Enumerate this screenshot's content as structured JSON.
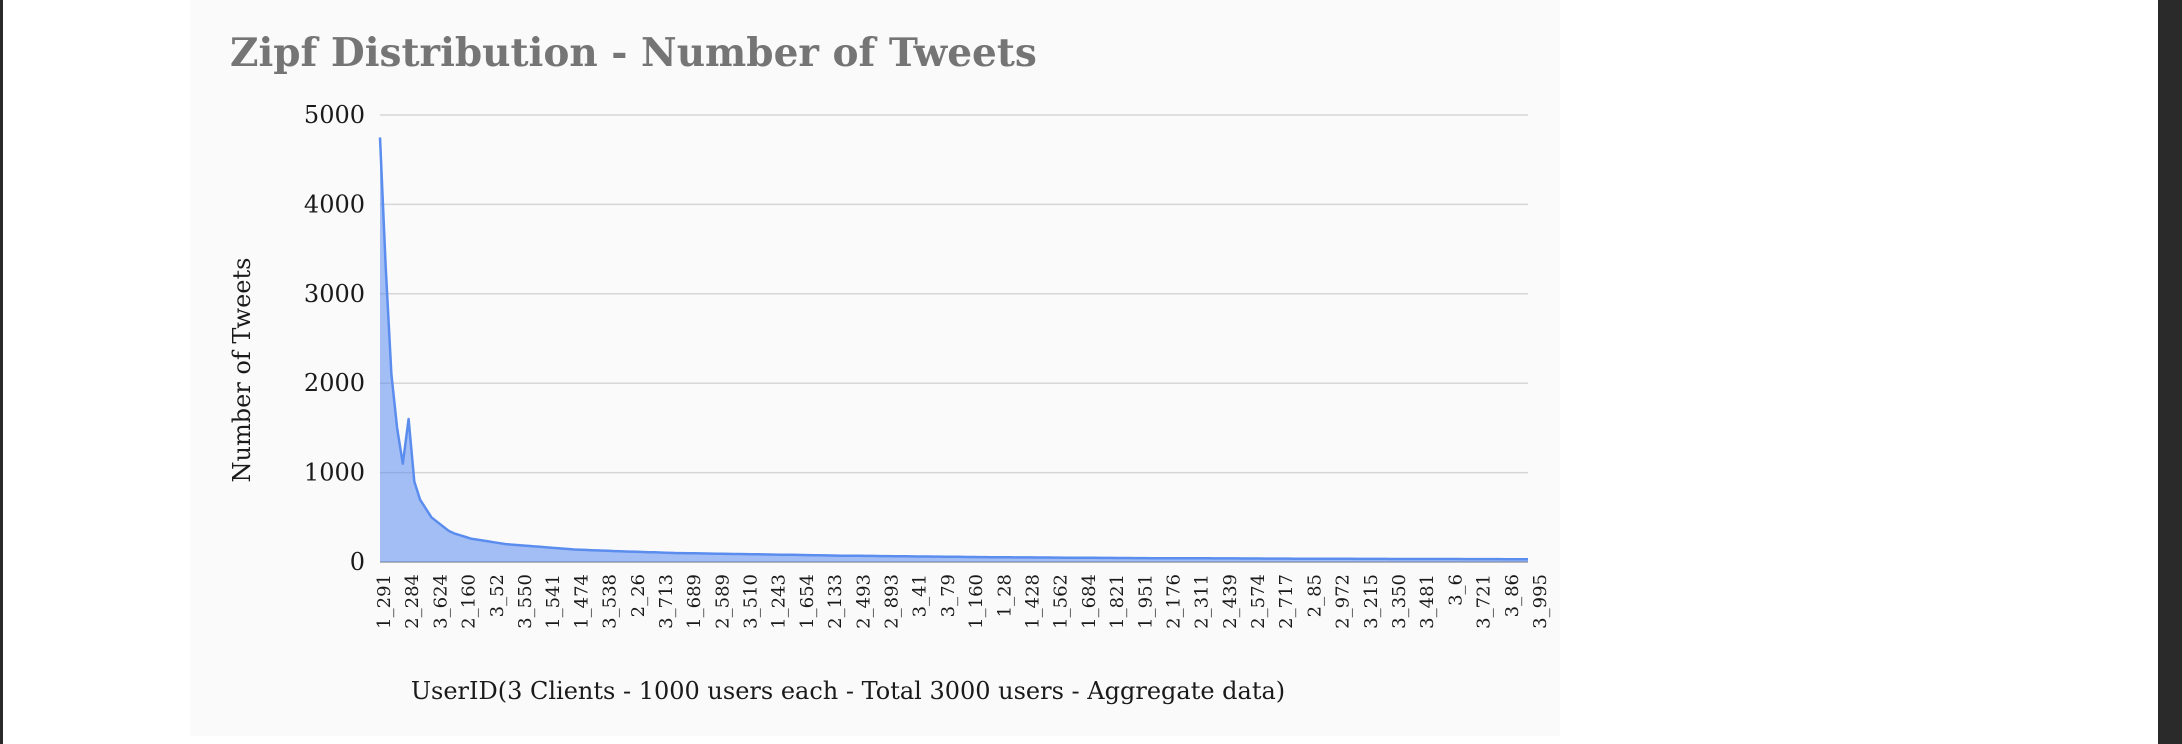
{
  "chart_data": {
    "type": "line",
    "title": "Zipf Distribution - Number of Tweets",
    "xlabel": "UserID(3 Clients - 1000 users each - Total 3000 users - Aggregate data)",
    "ylabel": "Number of Tweets",
    "ylim": [
      0,
      5000
    ],
    "yticks": [
      0,
      1000,
      2000,
      3000,
      4000,
      5000
    ],
    "ytick_labels": [
      "0",
      "1000",
      "2000",
      "3000",
      "4000",
      "5000"
    ],
    "grid": true,
    "legend": "none",
    "color": "#5b8def",
    "x_tick_labels": [
      "1_291",
      "2_284",
      "3_624",
      "2_160",
      "3_52",
      "3_550",
      "1_541",
      "1_474",
      "3_538",
      "2_26",
      "3_713",
      "1_689",
      "2_589",
      "3_510",
      "1_243",
      "1_654",
      "2_133",
      "2_493",
      "2_893",
      "3_41",
      "3_79",
      "1_160",
      "1_28",
      "1_428",
      "1_562",
      "1_684",
      "1_821",
      "1_951",
      "2_176",
      "2_311",
      "2_439",
      "2_574",
      "2_717",
      "2_85",
      "2_972",
      "3_215",
      "3_350",
      "3_481",
      "3_6",
      "3_721",
      "3_86",
      "3_995"
    ],
    "series": [
      {
        "values": [
          4750,
          3300,
          2100,
          1500,
          1100,
          1600,
          900,
          700,
          600,
          500,
          450,
          400,
          350,
          320,
          300,
          280,
          260,
          250,
          240,
          230,
          220,
          210,
          200,
          195,
          190,
          185,
          180,
          175,
          170,
          165,
          160,
          155,
          150,
          145,
          140,
          138,
          135,
          132,
          130,
          128,
          125,
          122,
          120,
          118,
          116,
          114,
          112,
          110,
          108,
          106,
          104,
          102,
          100,
          99,
          98,
          97,
          96,
          95,
          94,
          93,
          92,
          91,
          90,
          89,
          88,
          87,
          86,
          85,
          84,
          83,
          82,
          81,
          80,
          79,
          78,
          77,
          76,
          75,
          74,
          73,
          72,
          71,
          70,
          70,
          69,
          68,
          68,
          67,
          66,
          66,
          65,
          64,
          64,
          63,
          62,
          62,
          61,
          60,
          60,
          59,
          58,
          58,
          57,
          56,
          56,
          55,
          55,
          54,
          54,
          53,
          53,
          52,
          52,
          51,
          51,
          50,
          50,
          50,
          49,
          49,
          48,
          48,
          48,
          47,
          47,
          47,
          46,
          46,
          46,
          45,
          45,
          45,
          44,
          44,
          44,
          43,
          43,
          43,
          42,
          42,
          42,
          42,
          41,
          41,
          41,
          41,
          40,
          40,
          40,
          40,
          40,
          39,
          39,
          39,
          39,
          38,
          38,
          38,
          38,
          38,
          37,
          37,
          37,
          37,
          37,
          36,
          36,
          36,
          36,
          36,
          36,
          35,
          35,
          35,
          35,
          35,
          35,
          34,
          34,
          34,
          34,
          34,
          34,
          33,
          33,
          33,
          33,
          33,
          33,
          33,
          32,
          32,
          32,
          32,
          32,
          32,
          32,
          31,
          31,
          31,
          31,
          31
        ]
      }
    ]
  }
}
